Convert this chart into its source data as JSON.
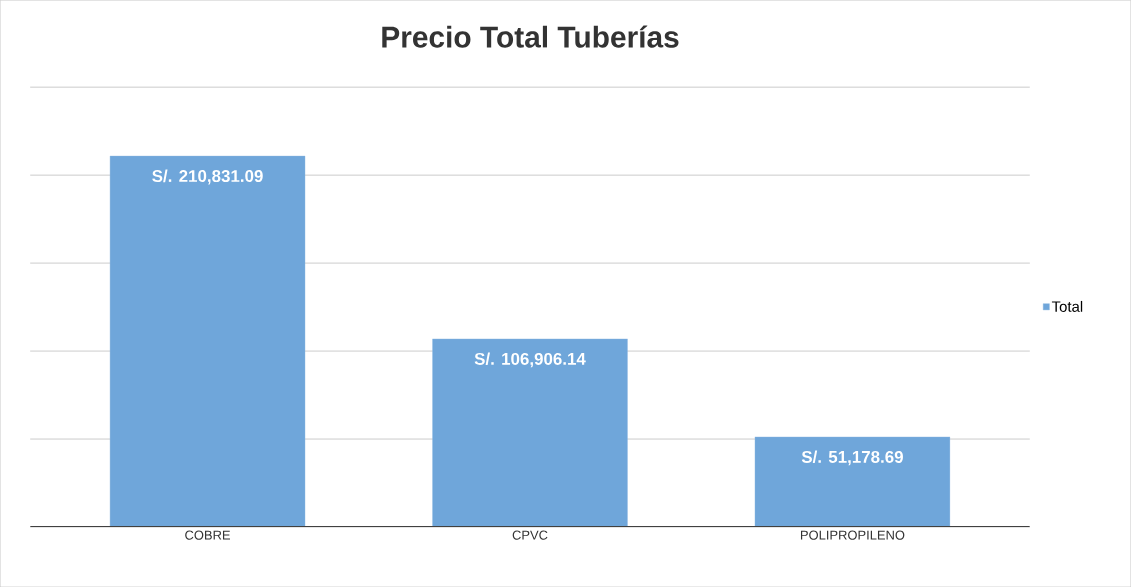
{
  "chart_data": {
    "type": "bar",
    "title": "Precio Total Tuberías",
    "categories": [
      "COBRE",
      "CPVC",
      "POLIPROPILENO"
    ],
    "series": [
      {
        "name": "Total",
        "color": "#6fa6da",
        "values": [
          210831.09,
          106906.14,
          51178.69
        ],
        "value_labels": [
          "S/. 210,831.09",
          "S/. 106,906.14",
          "S/. 51,178.69"
        ]
      }
    ],
    "ylim": [
      0,
      250000
    ],
    "yticks": [
      {
        "value": 0,
        "label": null
      },
      {
        "value": 50000,
        "label": null
      },
      {
        "value": 100000,
        "label": null
      },
      {
        "value": 150000,
        "label": null
      },
      {
        "value": 200000,
        "label": null
      },
      {
        "value": 250000,
        "label": null
      }
    ],
    "grid": "y",
    "legend": "right",
    "tick_labels": "x"
  }
}
